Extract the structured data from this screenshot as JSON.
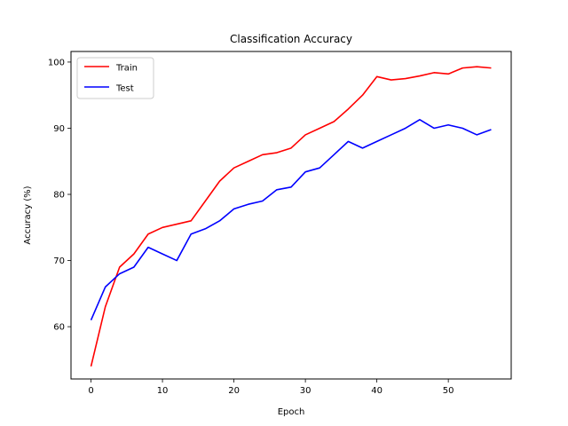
{
  "chart_data": {
    "type": "line",
    "title": "Classification Accuracy",
    "xlabel": "Epoch",
    "ylabel": "Accuracy (%)",
    "xlim": [
      -2.8,
      58.8
    ],
    "ylim": [
      52.1,
      101.6
    ],
    "xticks": [
      0,
      10,
      20,
      30,
      40,
      50
    ],
    "yticks": [
      60,
      70,
      80,
      90,
      100
    ],
    "grid": false,
    "legend_position": "top-left",
    "x": [
      0,
      2,
      4,
      6,
      8,
      10,
      12,
      14,
      16,
      18,
      20,
      22,
      24,
      26,
      28,
      30,
      32,
      34,
      36,
      38,
      40,
      42,
      44,
      46,
      48,
      50,
      52,
      54,
      56
    ],
    "series": [
      {
        "name": "Train",
        "color": "#ff0000",
        "values": [
          54.0,
          63.0,
          69.0,
          71.0,
          74.0,
          75.0,
          75.5,
          76.0,
          79.0,
          82.0,
          84.0,
          85.0,
          86.0,
          86.3,
          87.0,
          89.0,
          90.0,
          91.0,
          92.9,
          95.0,
          97.8,
          97.3,
          97.5,
          97.9,
          98.4,
          98.2,
          99.1,
          99.3,
          99.1
        ]
      },
      {
        "name": "Test",
        "color": "#0000ff",
        "values": [
          61.0,
          66.0,
          68.0,
          69.0,
          72.0,
          71.0,
          70.0,
          74.0,
          74.8,
          76.0,
          77.8,
          78.5,
          79.0,
          80.7,
          81.1,
          83.4,
          84.0,
          86.0,
          88.0,
          87.0,
          88.0,
          89.0,
          90.0,
          91.3,
          90.0,
          90.5,
          90.0,
          89.0,
          89.8
        ]
      }
    ]
  }
}
